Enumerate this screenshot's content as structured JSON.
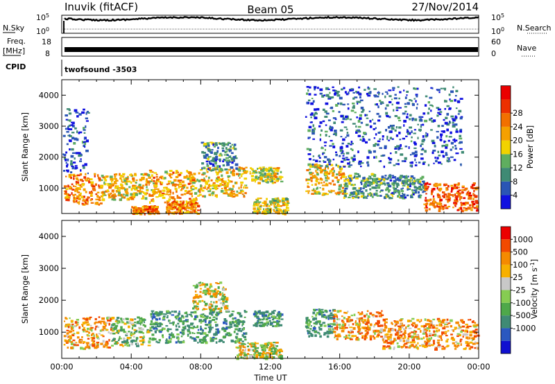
{
  "header": {
    "title": "Inuvik (fitACF)",
    "beam": "Beam 05",
    "date": "27/Nov/2014"
  },
  "side_labels": {
    "nsky": "N.Sky",
    "nsearch": "N.Search",
    "freq_line1": "Freq.",
    "freq_line2": "[MHz]",
    "nave": "Nave",
    "cpid": "CPID"
  },
  "noise_axis": {
    "top_base": "10",
    "top_exp": "5",
    "bottom_base": "10",
    "bottom_exp": "0"
  },
  "freq_axis": {
    "left_ticks": [
      "18",
      "8"
    ],
    "right_ticks": [
      "60",
      "0"
    ]
  },
  "cpid_text": "twofsound -3503",
  "chart_data": [
    {
      "type": "heatmap",
      "name": "power",
      "ylabel": "Slant Range [km]",
      "ylim": [
        180,
        4500
      ],
      "yticks": [
        1000,
        2000,
        3000,
        4000
      ],
      "xlim": [
        0,
        24
      ],
      "colorbar": {
        "label": "Power [dB]",
        "ticks": [
          "4",
          "8",
          "12",
          "16",
          "20",
          "24",
          "28"
        ],
        "colors": [
          "#1010e0",
          "#2a55b5",
          "#3f8a74",
          "#5fae5f",
          "#f2d200",
          "#f5a000",
          "#f27000",
          "#ec3000",
          "#ea0000"
        ]
      },
      "regions": [
        {
          "t0": 0.1,
          "t1": 2.2,
          "r0": 500,
          "r1": 1500,
          "level": 24
        },
        {
          "t0": 2.2,
          "t1": 5.0,
          "r0": 650,
          "r1": 1500,
          "level": 20
        },
        {
          "t0": 5.0,
          "t1": 7.8,
          "r0": 550,
          "r1": 1600,
          "level": 22
        },
        {
          "t0": 4.0,
          "t1": 5.5,
          "r0": 200,
          "r1": 450,
          "level": 26
        },
        {
          "t0": 6.0,
          "t1": 7.8,
          "r0": 200,
          "r1": 600,
          "level": 24
        },
        {
          "t0": 7.8,
          "t1": 10.6,
          "r0": 750,
          "r1": 1700,
          "level": 20
        },
        {
          "t0": 8.0,
          "t1": 10.0,
          "r0": 1600,
          "r1": 2500,
          "level": 10
        },
        {
          "t0": 10.8,
          "t1": 12.6,
          "r0": 1200,
          "r1": 1700,
          "level": 18
        },
        {
          "t0": 11.0,
          "t1": 13.0,
          "r0": 200,
          "r1": 700,
          "level": 18
        },
        {
          "t0": 14.0,
          "t1": 16.2,
          "r0": 800,
          "r1": 1800,
          "level": 20
        },
        {
          "t0": 16.2,
          "t1": 18.4,
          "r0": 700,
          "r1": 1500,
          "level": 12
        },
        {
          "t0": 18.4,
          "t1": 20.8,
          "r0": 700,
          "r1": 1450,
          "level": 10
        },
        {
          "t0": 20.8,
          "t1": 23.9,
          "r0": 300,
          "r1": 1200,
          "level": 28
        },
        {
          "t0": 0.0,
          "t1": 1.5,
          "r0": 1500,
          "r1": 3600,
          "level": 6
        },
        {
          "t0": 14.0,
          "t1": 23.0,
          "r0": 1700,
          "r1": 4300,
          "level": 6
        }
      ]
    },
    {
      "type": "heatmap",
      "name": "velocity",
      "ylabel": "Slant Range [km]",
      "xlabel": "Time UT",
      "ylim": [
        180,
        4500
      ],
      "yticks": [
        1000,
        2000,
        3000,
        4000
      ],
      "xlim": [
        0,
        24
      ],
      "xticks": [
        "00:00",
        "04:00",
        "08:00",
        "12:00",
        "16:00",
        "20:00",
        "00:00"
      ],
      "colorbar": {
        "label": "Velocity [m s-1]",
        "label_main": "Velocity [m s",
        "label_exp": "-1",
        "label_end": "]",
        "ticks": [
          "1000",
          "500",
          "100",
          "25",
          "-25",
          "-100",
          "-500",
          "-1000"
        ],
        "colors": [
          "#1010d0",
          "#2a58c0",
          "#3f8a74",
          "#4ea84a",
          "#86cc52",
          "#c8c8c8",
          "#f7b000",
          "#f58a00",
          "#f24a00",
          "#ec0000"
        ]
      },
      "regions": [
        {
          "t0": 0.1,
          "t1": 2.8,
          "r0": 500,
          "r1": 1500,
          "level": -150
        },
        {
          "t0": 2.8,
          "t1": 5.0,
          "r0": 600,
          "r1": 1500,
          "level": 120
        },
        {
          "t0": 5.0,
          "t1": 10.6,
          "r0": 700,
          "r1": 1700,
          "level": 300
        },
        {
          "t0": 7.5,
          "t1": 9.5,
          "r0": 1700,
          "r1": 2600,
          "level": 0
        },
        {
          "t0": 11.0,
          "t1": 12.6,
          "r0": 1200,
          "r1": 1700,
          "level": 300
        },
        {
          "t0": 10.0,
          "t1": 12.6,
          "r0": 200,
          "r1": 700,
          "level": 0
        },
        {
          "t0": 14.0,
          "t1": 15.6,
          "r0": 900,
          "r1": 1750,
          "level": 300
        },
        {
          "t0": 15.6,
          "t1": 18.4,
          "r0": 800,
          "r1": 1700,
          "level": -150
        },
        {
          "t0": 18.4,
          "t1": 23.9,
          "r0": 500,
          "r1": 1450,
          "level": -150
        }
      ]
    }
  ]
}
